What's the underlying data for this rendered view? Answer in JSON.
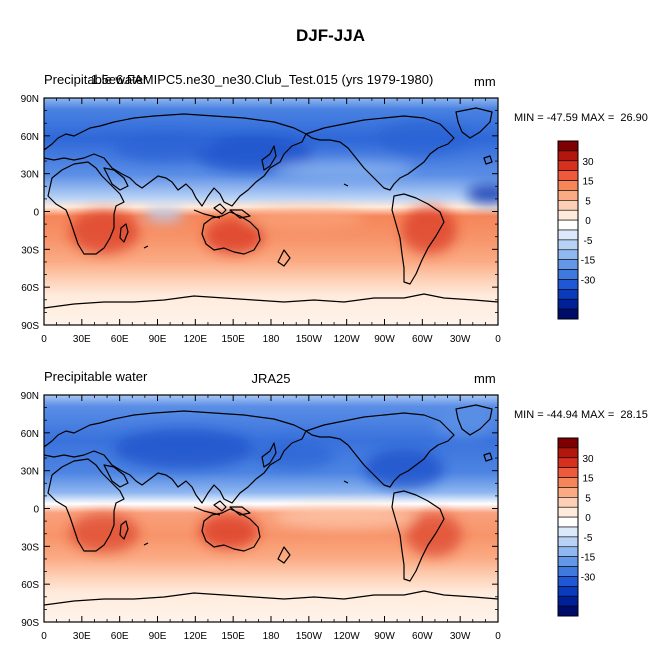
{
  "page_title": "DJF-JJA",
  "colorbar": {
    "labels": [
      "30",
      "15",
      "5",
      "0",
      "-5",
      "-15",
      "-30"
    ],
    "colors": [
      "#7f0000",
      "#b2170d",
      "#d7301f",
      "#ef5a3c",
      "#f6865a",
      "#fbab84",
      "#fdd0b6",
      "#ffebdc",
      "#ffffff",
      "#dce9fb",
      "#b8d2f6",
      "#8fb7f0",
      "#6497e8",
      "#3f78df",
      "#2057d4",
      "#0a3bbd",
      "#00209a",
      "#000c6a"
    ]
  },
  "panels": [
    {
      "left_title": "Precipitable water",
      "center_title": "1.5e6.FAMIPC5.ne30_ne30.Club_Test.015 (yrs 1979-1980)",
      "units": "mm",
      "stats": "MIN = -47.59 MAX =  26.90"
    },
    {
      "left_title": "Precipitable water",
      "center_title": "JRA25",
      "units": "mm",
      "stats": "MIN = -44.94 MAX =  28.15"
    }
  ],
  "axes": {
    "lat_labels": [
      "90N",
      "60N",
      "30N",
      "0",
      "30S",
      "60S",
      "90S"
    ],
    "lon_labels": [
      "0",
      "30E",
      "60E",
      "90E",
      "120E",
      "150E",
      "180",
      "150W",
      "120W",
      "90W",
      "60W",
      "30W",
      "0"
    ]
  }
}
